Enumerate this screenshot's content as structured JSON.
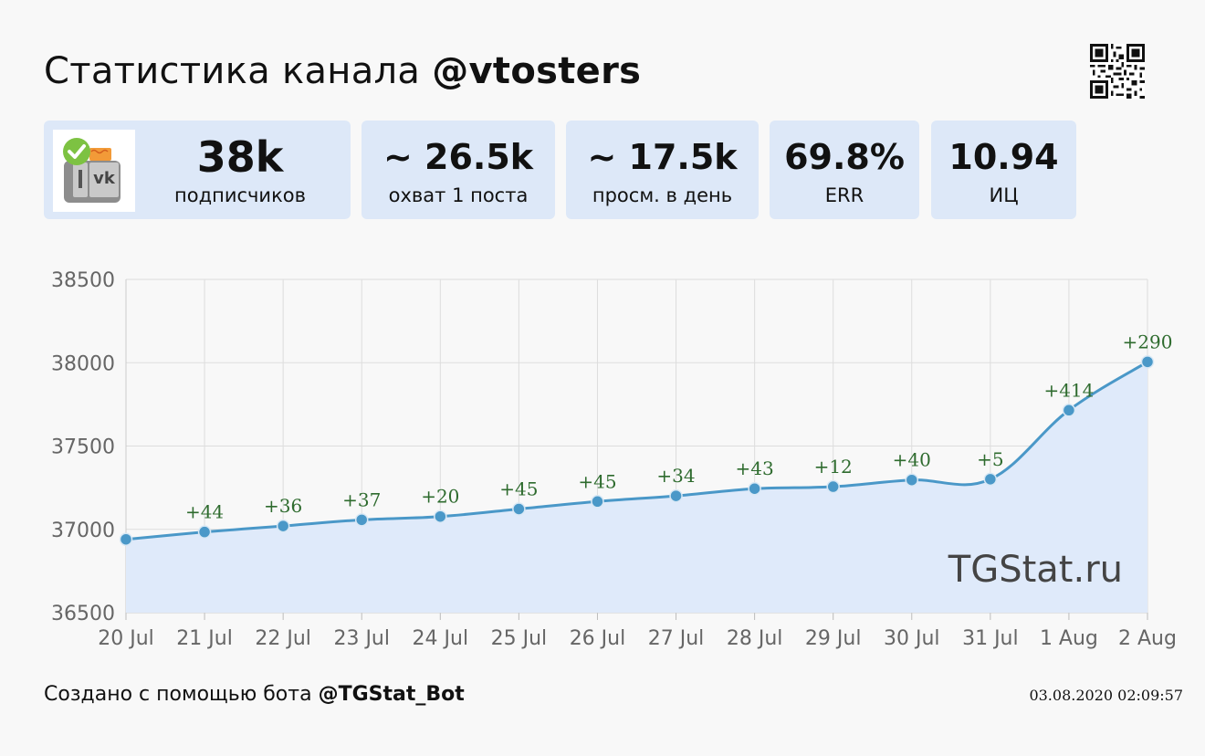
{
  "header": {
    "title_prefix": "Статистика канала",
    "channel": "@vtosters"
  },
  "stats": [
    {
      "value": "38k",
      "label": "подписчиков"
    },
    {
      "value": "~ 26.5k",
      "label": "охват 1 поста"
    },
    {
      "value": "~ 17.5k",
      "label": "просм. в день"
    },
    {
      "value": "69.8%",
      "label": "ERR"
    },
    {
      "value": "10.94",
      "label": "ИЦ"
    }
  ],
  "watermark": "TGStat.ru",
  "footer": {
    "prefix": "Создано с помощью бота",
    "bot": "@TGStat_Bot",
    "timestamp": "03.08.2020 02:09:57"
  },
  "colors": {
    "line": "#4a98c8",
    "fill": "#dfeafa",
    "card": "#dde8f8",
    "delta_label": "#2e6b2e",
    "grid": "#dddddd"
  },
  "chart_data": {
    "type": "area",
    "x": [
      "20 Jul",
      "21 Jul",
      "22 Jul",
      "23 Jul",
      "24 Jul",
      "25 Jul",
      "26 Jul",
      "27 Jul",
      "28 Jul",
      "29 Jul",
      "30 Jul",
      "31 Jul",
      "1 Aug",
      "2 Aug"
    ],
    "series": [
      {
        "values": [
          36940,
          36984,
          37020,
          37057,
          37077,
          37122,
          37167,
          37201,
          37244,
          37256,
          37296,
          37301,
          37715,
          38005
        ],
        "annotations": [
          "",
          "+44",
          "+36",
          "+37",
          "+20",
          "+45",
          "+45",
          "+34",
          "+43",
          "+12",
          "+40",
          "+5",
          "+414",
          "+290"
        ]
      }
    ],
    "yticks": [
      36500,
      37000,
      37500,
      38000,
      38500
    ],
    "ylim": [
      36500,
      38500
    ],
    "grid": true,
    "legend": "none",
    "title": "",
    "xlabel": "",
    "ylabel": ""
  }
}
